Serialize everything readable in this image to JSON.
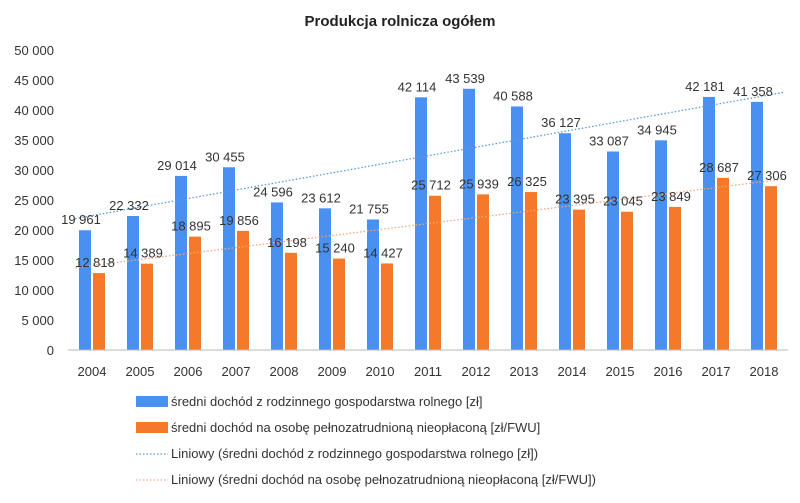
{
  "chart_data": {
    "type": "bar",
    "title": "Produkcja rolnicza ogółem",
    "xlabel": "",
    "ylabel": "",
    "ylim": [
      0,
      50000
    ],
    "yticks": [
      "0",
      "5 000",
      "10 000",
      "15 000",
      "20 000",
      "25 000",
      "30 000",
      "35 000",
      "40 000",
      "45 000",
      "50 000"
    ],
    "grid": false,
    "legend_position": "bottom",
    "categories": [
      "2004",
      "2005",
      "2006",
      "2007",
      "2008",
      "2009",
      "2010",
      "2011",
      "2012",
      "2013",
      "2014",
      "2015",
      "2016",
      "2017",
      "2018"
    ],
    "series": [
      {
        "name": "średni dochód z rodzinnego gospodarstwa rolnego [zł]",
        "color": "#4a90f0",
        "values": [
          19961,
          22332,
          29014,
          30455,
          24596,
          23612,
          21755,
          42114,
          43539,
          40588,
          36127,
          33087,
          34945,
          42181,
          41358
        ],
        "labels": [
          "19 961",
          "22 332",
          "29 014",
          "30 455",
          "24 596",
          "23 612",
          "21 755",
          "42 114",
          "43 539",
          "40 588",
          "36 127",
          "33 087",
          "34 945",
          "42 181",
          "41 358"
        ]
      },
      {
        "name": "średni dochód na osobę pełnozatrudnioną nieopłaconą [zł/FWU]",
        "color": "#f5792a",
        "values": [
          12818,
          14389,
          18895,
          19856,
          16198,
          15240,
          14427,
          25712,
          25939,
          26325,
          23395,
          23045,
          23849,
          28687,
          27306
        ],
        "labels": [
          "12 818",
          "14 389",
          "18 895",
          "19 856",
          "16 198",
          "15 240",
          "14 427",
          "25 712",
          "25 939",
          "26 325",
          "23 395",
          "23 045",
          "23 849",
          "28 687",
          "27 306"
        ]
      }
    ],
    "trendlines": [
      {
        "name": "Liniowy (średni dochód z rodzinnego gospodarstwa rolnego [zł])",
        "type": "linear",
        "series": 0,
        "color": "#5b9bd5"
      },
      {
        "name": "Liniowy (średni dochód na osobę pełnozatrudnioną nieopłaconą [zł/FWU])",
        "type": "linear",
        "series": 1,
        "color": "#f4a582"
      }
    ]
  }
}
